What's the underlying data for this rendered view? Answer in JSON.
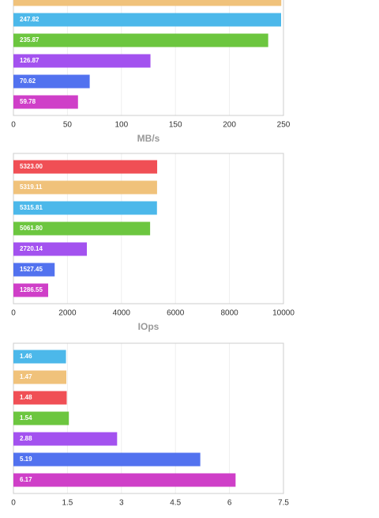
{
  "chart_data": [
    {
      "type": "bar",
      "orientation": "horizontal",
      "x_label": "MB/s",
      "values": [
        248,
        247.82,
        235.87,
        126.87,
        70.62,
        59.78
      ],
      "value_labels": [
        null,
        "247.82",
        "235.87",
        "126.87",
        "70.62",
        "59.78"
      ],
      "colors": [
        "#f0c27b",
        "#4cb8ea",
        "#6cc63f",
        "#a352ef",
        "#5272ef",
        "#cf3fc8"
      ],
      "xlim": [
        0,
        250
      ],
      "xticks": [
        0,
        50,
        100,
        150,
        200,
        250
      ],
      "grid": true
    },
    {
      "type": "bar",
      "orientation": "horizontal",
      "x_label": "IOps",
      "values": [
        5323,
        5319.11,
        5315.81,
        5061.8,
        2720.14,
        1527.45,
        1286.55
      ],
      "value_labels": [
        "5323.00",
        "5319.11",
        "5315.81",
        "5061.80",
        "2720.14",
        "1527.45",
        "1286.55"
      ],
      "colors": [
        "#f04f55",
        "#f0c27b",
        "#4cb8ea",
        "#6cc63f",
        "#a352ef",
        "#5272ef",
        "#cf3fc8"
      ],
      "xlim": [
        0,
        10000
      ],
      "xticks": [
        0,
        2000,
        4000,
        6000,
        8000,
        10000
      ],
      "grid": true
    },
    {
      "type": "bar",
      "orientation": "horizontal",
      "values": [
        1.46,
        1.47,
        1.48,
        1.54,
        2.88,
        5.19,
        6.17
      ],
      "value_labels": [
        "1.46",
        "1.47",
        "1.48",
        "1.54",
        "2.88",
        "5.19",
        "6.17"
      ],
      "colors": [
        "#4cb8ea",
        "#f0c27b",
        "#f04f55",
        "#6cc63f",
        "#a352ef",
        "#5272ef",
        "#cf3fc8"
      ],
      "xlim": [
        0,
        7.5
      ],
      "xticks": [
        0,
        1.5,
        3,
        4.5,
        6,
        7.5
      ],
      "grid": true
    }
  ]
}
